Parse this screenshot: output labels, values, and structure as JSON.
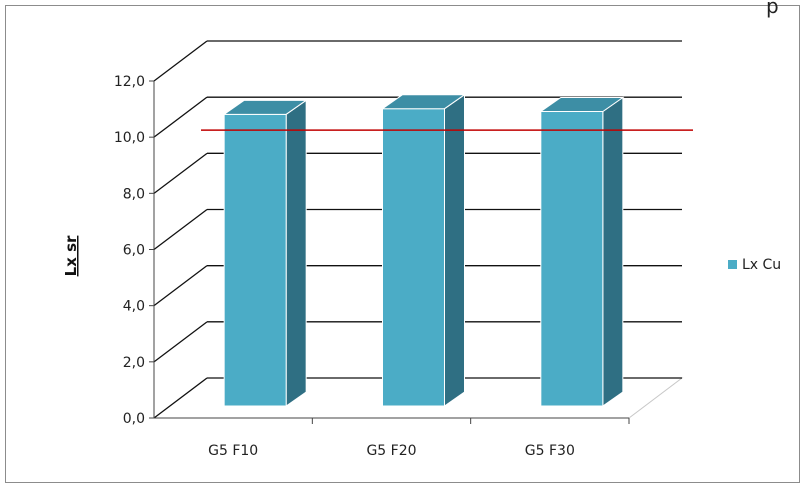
{
  "chart_data": {
    "type": "bar",
    "categories": [
      "G5 F10",
      "G5 F20",
      "G5 F30"
    ],
    "series": [
      {
        "name": "Lx Cu",
        "values": [
          10.6,
          10.8,
          10.7
        ],
        "color": "#4bacc6"
      }
    ],
    "reference_line": {
      "value": 10.0,
      "color": "#c00000"
    },
    "ylabel": "Lx sr",
    "xlabel": "",
    "title": "",
    "ylim": [
      0,
      12
    ],
    "yticks": [
      "0,0",
      "2,0",
      "4,0",
      "6,0",
      "8,0",
      "10,0",
      "12,0"
    ],
    "grid": true,
    "legend_position": "right",
    "style": "3d-column"
  },
  "top_right_glyph": "p"
}
